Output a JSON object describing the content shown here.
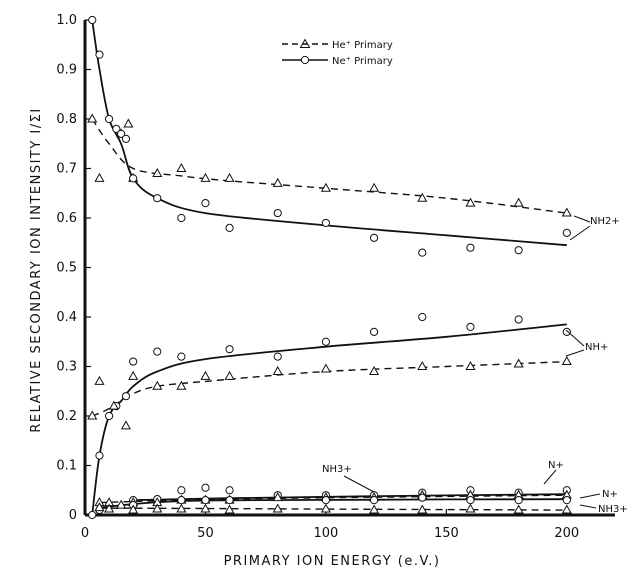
{
  "chart_data": {
    "type": "line",
    "title": "",
    "xlabel": "PRIMARY ION ENERGY (e.V.)",
    "ylabel": "RELATIVE SECONDARY ION INTENSITY I/ΣI",
    "xlim": [
      0,
      220
    ],
    "ylim": [
      0,
      1.0
    ],
    "x_ticks": [
      "0",
      "50",
      "100",
      "150",
      "200"
    ],
    "y_ticks": [
      "0",
      "0.1",
      "0.2",
      "0.3",
      "0.4",
      "0.5",
      "0.6",
      "0.7",
      "0.8",
      "0.9",
      "1.0"
    ],
    "grid": false,
    "legend_position": "top-center",
    "legend": [
      {
        "label": "He⁺ Primary",
        "style": "dashed",
        "marker": "triangle"
      },
      {
        "label": "Ne⁺ Primary",
        "style": "solid",
        "marker": "circle"
      }
    ],
    "annotations": [
      "NH2+",
      "NH+",
      "N+",
      "N+",
      "NH3+",
      "NH3+"
    ],
    "series": [
      {
        "name": "NH2+ He+ Primary",
        "primary": "He+",
        "style": "dashed",
        "marker": "triangle",
        "points": [
          [
            3,
            0.8
          ],
          [
            6,
            0.68
          ],
          [
            15,
            0.77
          ],
          [
            18,
            0.79
          ],
          [
            20,
            0.68
          ],
          [
            30,
            0.69
          ],
          [
            40,
            0.7
          ],
          [
            50,
            0.68
          ],
          [
            60,
            0.68
          ],
          [
            80,
            0.67
          ],
          [
            100,
            0.66
          ],
          [
            120,
            0.66
          ],
          [
            140,
            0.64
          ],
          [
            160,
            0.63
          ],
          [
            180,
            0.63
          ],
          [
            200,
            0.61
          ]
        ],
        "curve": [
          [
            3,
            0.8
          ],
          [
            10,
            0.75
          ],
          [
            20,
            0.7
          ],
          [
            40,
            0.685
          ],
          [
            60,
            0.675
          ],
          [
            100,
            0.66
          ],
          [
            150,
            0.64
          ],
          [
            200,
            0.61
          ]
        ]
      },
      {
        "name": "NH2+ Ne+ Primary",
        "primary": "Ne+",
        "style": "solid",
        "marker": "circle",
        "points": [
          [
            3,
            1.0
          ],
          [
            6,
            0.93
          ],
          [
            10,
            0.8
          ],
          [
            13,
            0.78
          ],
          [
            15,
            0.77
          ],
          [
            17,
            0.76
          ],
          [
            20,
            0.68
          ],
          [
            30,
            0.64
          ],
          [
            40,
            0.6
          ],
          [
            50,
            0.63
          ],
          [
            60,
            0.58
          ],
          [
            80,
            0.61
          ],
          [
            100,
            0.59
          ],
          [
            120,
            0.56
          ],
          [
            140,
            0.53
          ],
          [
            160,
            0.54
          ],
          [
            180,
            0.535
          ],
          [
            200,
            0.57
          ]
        ],
        "curve": [
          [
            3,
            1.0
          ],
          [
            6,
            0.9
          ],
          [
            10,
            0.8
          ],
          [
            15,
            0.75
          ],
          [
            20,
            0.68
          ],
          [
            30,
            0.64
          ],
          [
            50,
            0.61
          ],
          [
            100,
            0.585
          ],
          [
            150,
            0.565
          ],
          [
            200,
            0.545
          ]
        ]
      },
      {
        "name": "NH+ Ne+ Primary",
        "primary": "Ne+",
        "style": "solid",
        "marker": "circle",
        "points": [
          [
            3,
            0.0
          ],
          [
            6,
            0.12
          ],
          [
            10,
            0.2
          ],
          [
            13,
            0.22
          ],
          [
            17,
            0.24
          ],
          [
            20,
            0.31
          ],
          [
            30,
            0.33
          ],
          [
            40,
            0.32
          ],
          [
            60,
            0.335
          ],
          [
            80,
            0.32
          ],
          [
            100,
            0.35
          ],
          [
            120,
            0.37
          ],
          [
            140,
            0.4
          ],
          [
            160,
            0.38
          ],
          [
            180,
            0.395
          ],
          [
            200,
            0.37
          ]
        ],
        "curve": [
          [
            3,
            0.0
          ],
          [
            6,
            0.12
          ],
          [
            10,
            0.2
          ],
          [
            15,
            0.23
          ],
          [
            20,
            0.26
          ],
          [
            30,
            0.29
          ],
          [
            50,
            0.315
          ],
          [
            100,
            0.34
          ],
          [
            150,
            0.36
          ],
          [
            200,
            0.385
          ]
        ]
      },
      {
        "name": "NH+ He+ Primary",
        "primary": "He+",
        "style": "dashed",
        "marker": "triangle",
        "points": [
          [
            3,
            0.2
          ],
          [
            6,
            0.27
          ],
          [
            12,
            0.22
          ],
          [
            17,
            0.18
          ],
          [
            20,
            0.28
          ],
          [
            30,
            0.26
          ],
          [
            40,
            0.26
          ],
          [
            50,
            0.28
          ],
          [
            60,
            0.28
          ],
          [
            80,
            0.29
          ],
          [
            100,
            0.295
          ],
          [
            120,
            0.29
          ],
          [
            140,
            0.3
          ],
          [
            160,
            0.3
          ],
          [
            180,
            0.305
          ],
          [
            200,
            0.31
          ]
        ],
        "curve": [
          [
            3,
            0.2
          ],
          [
            10,
            0.215
          ],
          [
            20,
            0.245
          ],
          [
            30,
            0.26
          ],
          [
            50,
            0.27
          ],
          [
            100,
            0.29
          ],
          [
            150,
            0.3
          ],
          [
            200,
            0.31
          ]
        ]
      },
      {
        "name": "N+ Ne+ Primary",
        "primary": "Ne+",
        "style": "solid",
        "marker": "circle",
        "points": [
          [
            20,
            0.03
          ],
          [
            30,
            0.032
          ],
          [
            40,
            0.05
          ],
          [
            50,
            0.055
          ],
          [
            60,
            0.05
          ],
          [
            80,
            0.04
          ],
          [
            100,
            0.04
          ],
          [
            120,
            0.04
          ],
          [
            140,
            0.045
          ],
          [
            160,
            0.05
          ],
          [
            180,
            0.045
          ],
          [
            200,
            0.05
          ]
        ],
        "curve": [
          [
            20,
            0.03
          ],
          [
            60,
            0.034
          ],
          [
            120,
            0.038
          ],
          [
            200,
            0.042
          ]
        ]
      },
      {
        "name": "N+ He+ Primary",
        "primary": "He+",
        "style": "dashed",
        "marker": "triangle",
        "points": [
          [
            6,
            0.025
          ],
          [
            10,
            0.025
          ],
          [
            15,
            0.02
          ],
          [
            20,
            0.025
          ],
          [
            30,
            0.025
          ],
          [
            40,
            0.03
          ],
          [
            50,
            0.03
          ],
          [
            60,
            0.03
          ],
          [
            80,
            0.035
          ],
          [
            100,
            0.035
          ],
          [
            120,
            0.035
          ],
          [
            140,
            0.04
          ],
          [
            160,
            0.04
          ],
          [
            180,
            0.04
          ],
          [
            200,
            0.04
          ]
        ],
        "curve": [
          [
            6,
            0.025
          ],
          [
            40,
            0.03
          ],
          [
            100,
            0.035
          ],
          [
            200,
            0.04
          ]
        ]
      },
      {
        "name": "NH3+ Ne+ Primary",
        "primary": "Ne+",
        "style": "solid",
        "marker": "circle",
        "points": [
          [
            6,
            0.01
          ],
          [
            20,
            0.02
          ],
          [
            40,
            0.03
          ],
          [
            50,
            0.03
          ],
          [
            60,
            0.03
          ],
          [
            100,
            0.03
          ],
          [
            120,
            0.03
          ],
          [
            140,
            0.035
          ],
          [
            160,
            0.03
          ],
          [
            180,
            0.03
          ],
          [
            200,
            0.03
          ]
        ],
        "curve": [
          [
            6,
            0.015
          ],
          [
            40,
            0.028
          ],
          [
            120,
            0.031
          ],
          [
            200,
            0.032
          ]
        ]
      },
      {
        "name": "NH3+ He+ Primary",
        "primary": "He+",
        "style": "dashed",
        "marker": "triangle",
        "points": [
          [
            6,
            0.015
          ],
          [
            10,
            0.012
          ],
          [
            20,
            0.01
          ],
          [
            30,
            0.012
          ],
          [
            40,
            0.012
          ],
          [
            50,
            0.012
          ],
          [
            60,
            0.01
          ],
          [
            80,
            0.012
          ],
          [
            100,
            0.012
          ],
          [
            120,
            0.01
          ],
          [
            140,
            0.01
          ],
          [
            160,
            0.012
          ],
          [
            180,
            0.01
          ],
          [
            200,
            0.01
          ]
        ],
        "curve": [
          [
            6,
            0.014
          ],
          [
            100,
            0.012
          ],
          [
            200,
            0.01
          ]
        ]
      }
    ]
  }
}
